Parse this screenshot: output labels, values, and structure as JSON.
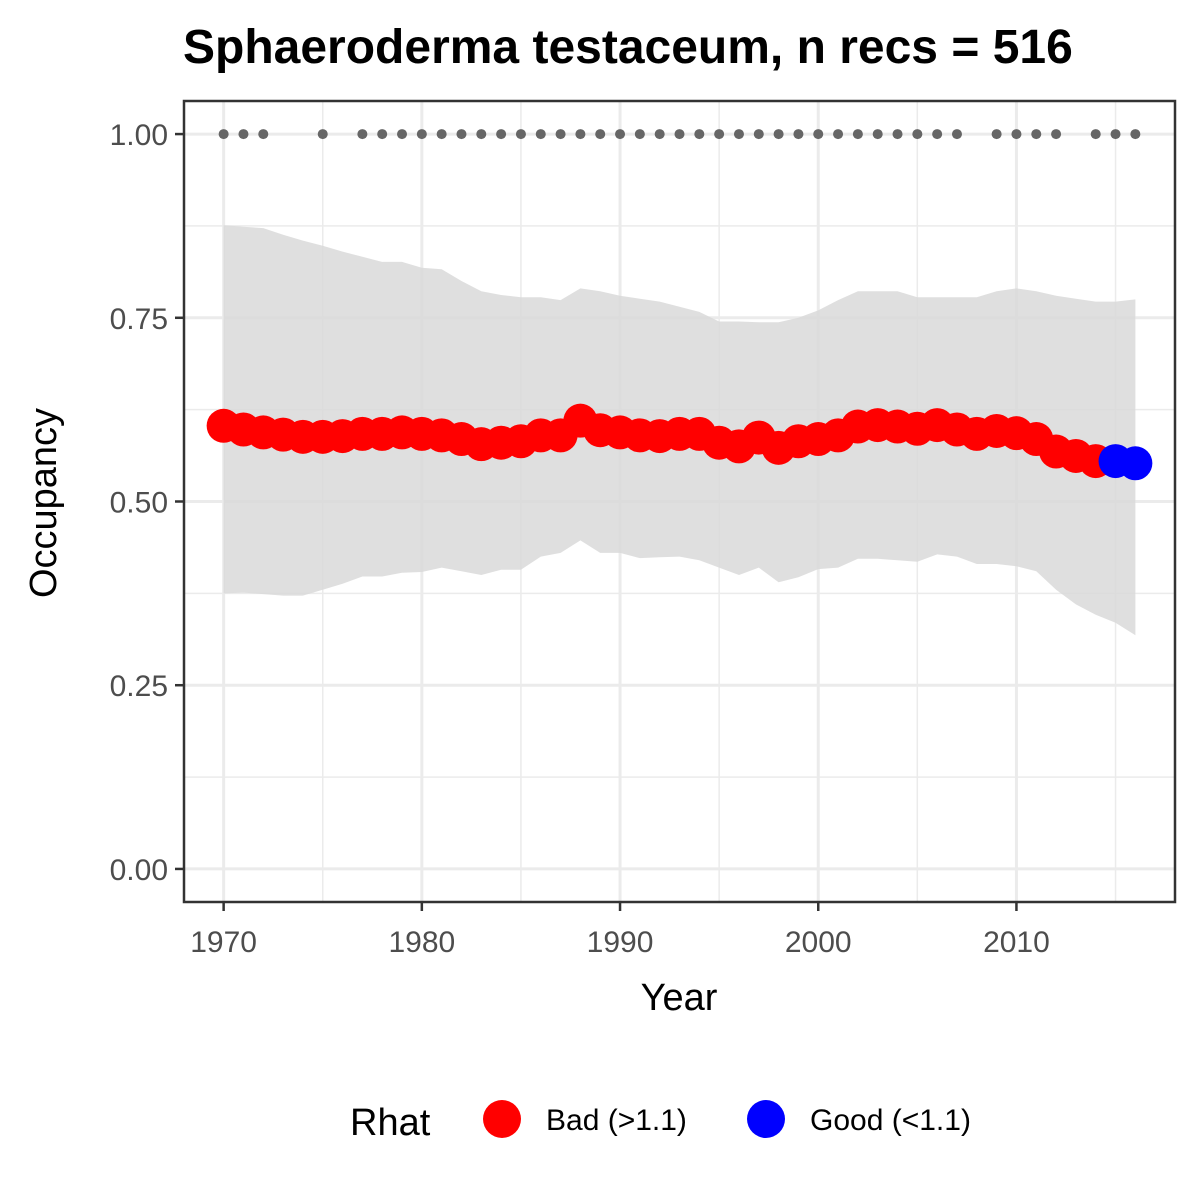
{
  "chart_data": {
    "type": "line",
    "title": "Sphaeroderma testaceum, n recs = 516",
    "xlabel": "Year",
    "ylabel": "Occupancy",
    "xlim": [
      1968,
      2018
    ],
    "ylim": [
      -0.045,
      1.045
    ],
    "x_ticks": [
      1970,
      1980,
      1990,
      2000,
      2010
    ],
    "x_tick_labels": [
      "1970",
      "1980",
      "1990",
      "2000",
      "2010"
    ],
    "y_ticks": [
      0,
      0.25,
      0.5,
      0.75,
      1.0
    ],
    "y_tick_labels": [
      "0.00",
      "0.25",
      "0.50",
      "0.75",
      "1.00"
    ],
    "grid": true,
    "colors": {
      "bad": "#ff0000",
      "good": "#0000ff",
      "ribbon": "#d9d9d9",
      "records": "#666666",
      "grid": "#ebebeb",
      "panel_border": "#333333"
    },
    "series": [
      {
        "type": "ribbon",
        "x": [
          1970,
          1971,
          1972,
          1973,
          1974,
          1975,
          1976,
          1977,
          1978,
          1979,
          1980,
          1981,
          1982,
          1983,
          1984,
          1985,
          1986,
          1987,
          1988,
          1989,
          1990,
          1991,
          1992,
          1993,
          1994,
          1995,
          1996,
          1997,
          1998,
          1999,
          2000,
          2001,
          2002,
          2003,
          2004,
          2005,
          2006,
          2007,
          2008,
          2009,
          2010,
          2011,
          2012,
          2013,
          2014,
          2015,
          2016
        ],
        "lower": [
          0.375,
          0.376,
          0.374,
          0.372,
          0.372,
          0.38,
          0.388,
          0.398,
          0.398,
          0.403,
          0.404,
          0.41,
          0.405,
          0.4,
          0.407,
          0.407,
          0.425,
          0.43,
          0.447,
          0.43,
          0.43,
          0.423,
          0.424,
          0.425,
          0.42,
          0.41,
          0.4,
          0.41,
          0.39,
          0.397,
          0.408,
          0.41,
          0.422,
          0.422,
          0.42,
          0.418,
          0.428,
          0.425,
          0.415,
          0.415,
          0.412,
          0.405,
          0.38,
          0.36,
          0.346,
          0.335,
          0.318
        ],
        "upper": [
          0.876,
          0.874,
          0.872,
          0.863,
          0.855,
          0.848,
          0.84,
          0.833,
          0.826,
          0.826,
          0.818,
          0.816,
          0.8,
          0.786,
          0.781,
          0.778,
          0.778,
          0.774,
          0.79,
          0.786,
          0.78,
          0.776,
          0.772,
          0.765,
          0.758,
          0.745,
          0.745,
          0.744,
          0.744,
          0.75,
          0.76,
          0.774,
          0.786,
          0.786,
          0.786,
          0.778,
          0.778,
          0.778,
          0.778,
          0.786,
          0.79,
          0.786,
          0.78,
          0.776,
          0.772,
          0.772,
          0.775
        ]
      },
      {
        "type": "points",
        "x": [
          1970,
          1971,
          1972,
          1973,
          1974,
          1975,
          1976,
          1977,
          1978,
          1979,
          1980,
          1981,
          1982,
          1983,
          1984,
          1985,
          1986,
          1987,
          1988,
          1989,
          1990,
          1991,
          1992,
          1993,
          1994,
          1995,
          1996,
          1997,
          1998,
          1999,
          2000,
          2001,
          2002,
          2003,
          2004,
          2005,
          2006,
          2007,
          2008,
          2009,
          2010,
          2011,
          2012,
          2013,
          2014,
          2015,
          2016
        ],
        "y": [
          0.603,
          0.598,
          0.594,
          0.591,
          0.588,
          0.588,
          0.589,
          0.592,
          0.592,
          0.594,
          0.592,
          0.59,
          0.585,
          0.578,
          0.58,
          0.582,
          0.59,
          0.59,
          0.61,
          0.597,
          0.594,
          0.59,
          0.589,
          0.592,
          0.592,
          0.58,
          0.575,
          0.587,
          0.573,
          0.582,
          0.585,
          0.59,
          0.602,
          0.604,
          0.602,
          0.599,
          0.604,
          0.598,
          0.592,
          0.596,
          0.593,
          0.585,
          0.568,
          0.562,
          0.555,
          0.555,
          0.552
        ],
        "rhat": [
          "bad",
          "bad",
          "bad",
          "bad",
          "bad",
          "bad",
          "bad",
          "bad",
          "bad",
          "bad",
          "bad",
          "bad",
          "bad",
          "bad",
          "bad",
          "bad",
          "bad",
          "bad",
          "bad",
          "bad",
          "bad",
          "bad",
          "bad",
          "bad",
          "bad",
          "bad",
          "bad",
          "bad",
          "bad",
          "bad",
          "bad",
          "bad",
          "bad",
          "bad",
          "bad",
          "bad",
          "bad",
          "bad",
          "bad",
          "bad",
          "bad",
          "bad",
          "bad",
          "bad",
          "bad",
          "good",
          "good"
        ]
      },
      {
        "type": "records",
        "y": 1.0,
        "x": [
          1970,
          1971,
          1972,
          1975,
          1977,
          1978,
          1979,
          1980,
          1981,
          1982,
          1983,
          1984,
          1985,
          1986,
          1987,
          1988,
          1989,
          1990,
          1991,
          1992,
          1993,
          1994,
          1995,
          1996,
          1997,
          1998,
          1999,
          2000,
          2001,
          2002,
          2003,
          2004,
          2005,
          2006,
          2007,
          2009,
          2010,
          2011,
          2012,
          2014,
          2015,
          2016
        ]
      }
    ],
    "legend": {
      "title": "Rhat",
      "position": "bottom",
      "entries": [
        {
          "key": "bad",
          "label": "Bad (>1.1)"
        },
        {
          "key": "good",
          "label": "Good (<1.1)"
        }
      ]
    }
  }
}
